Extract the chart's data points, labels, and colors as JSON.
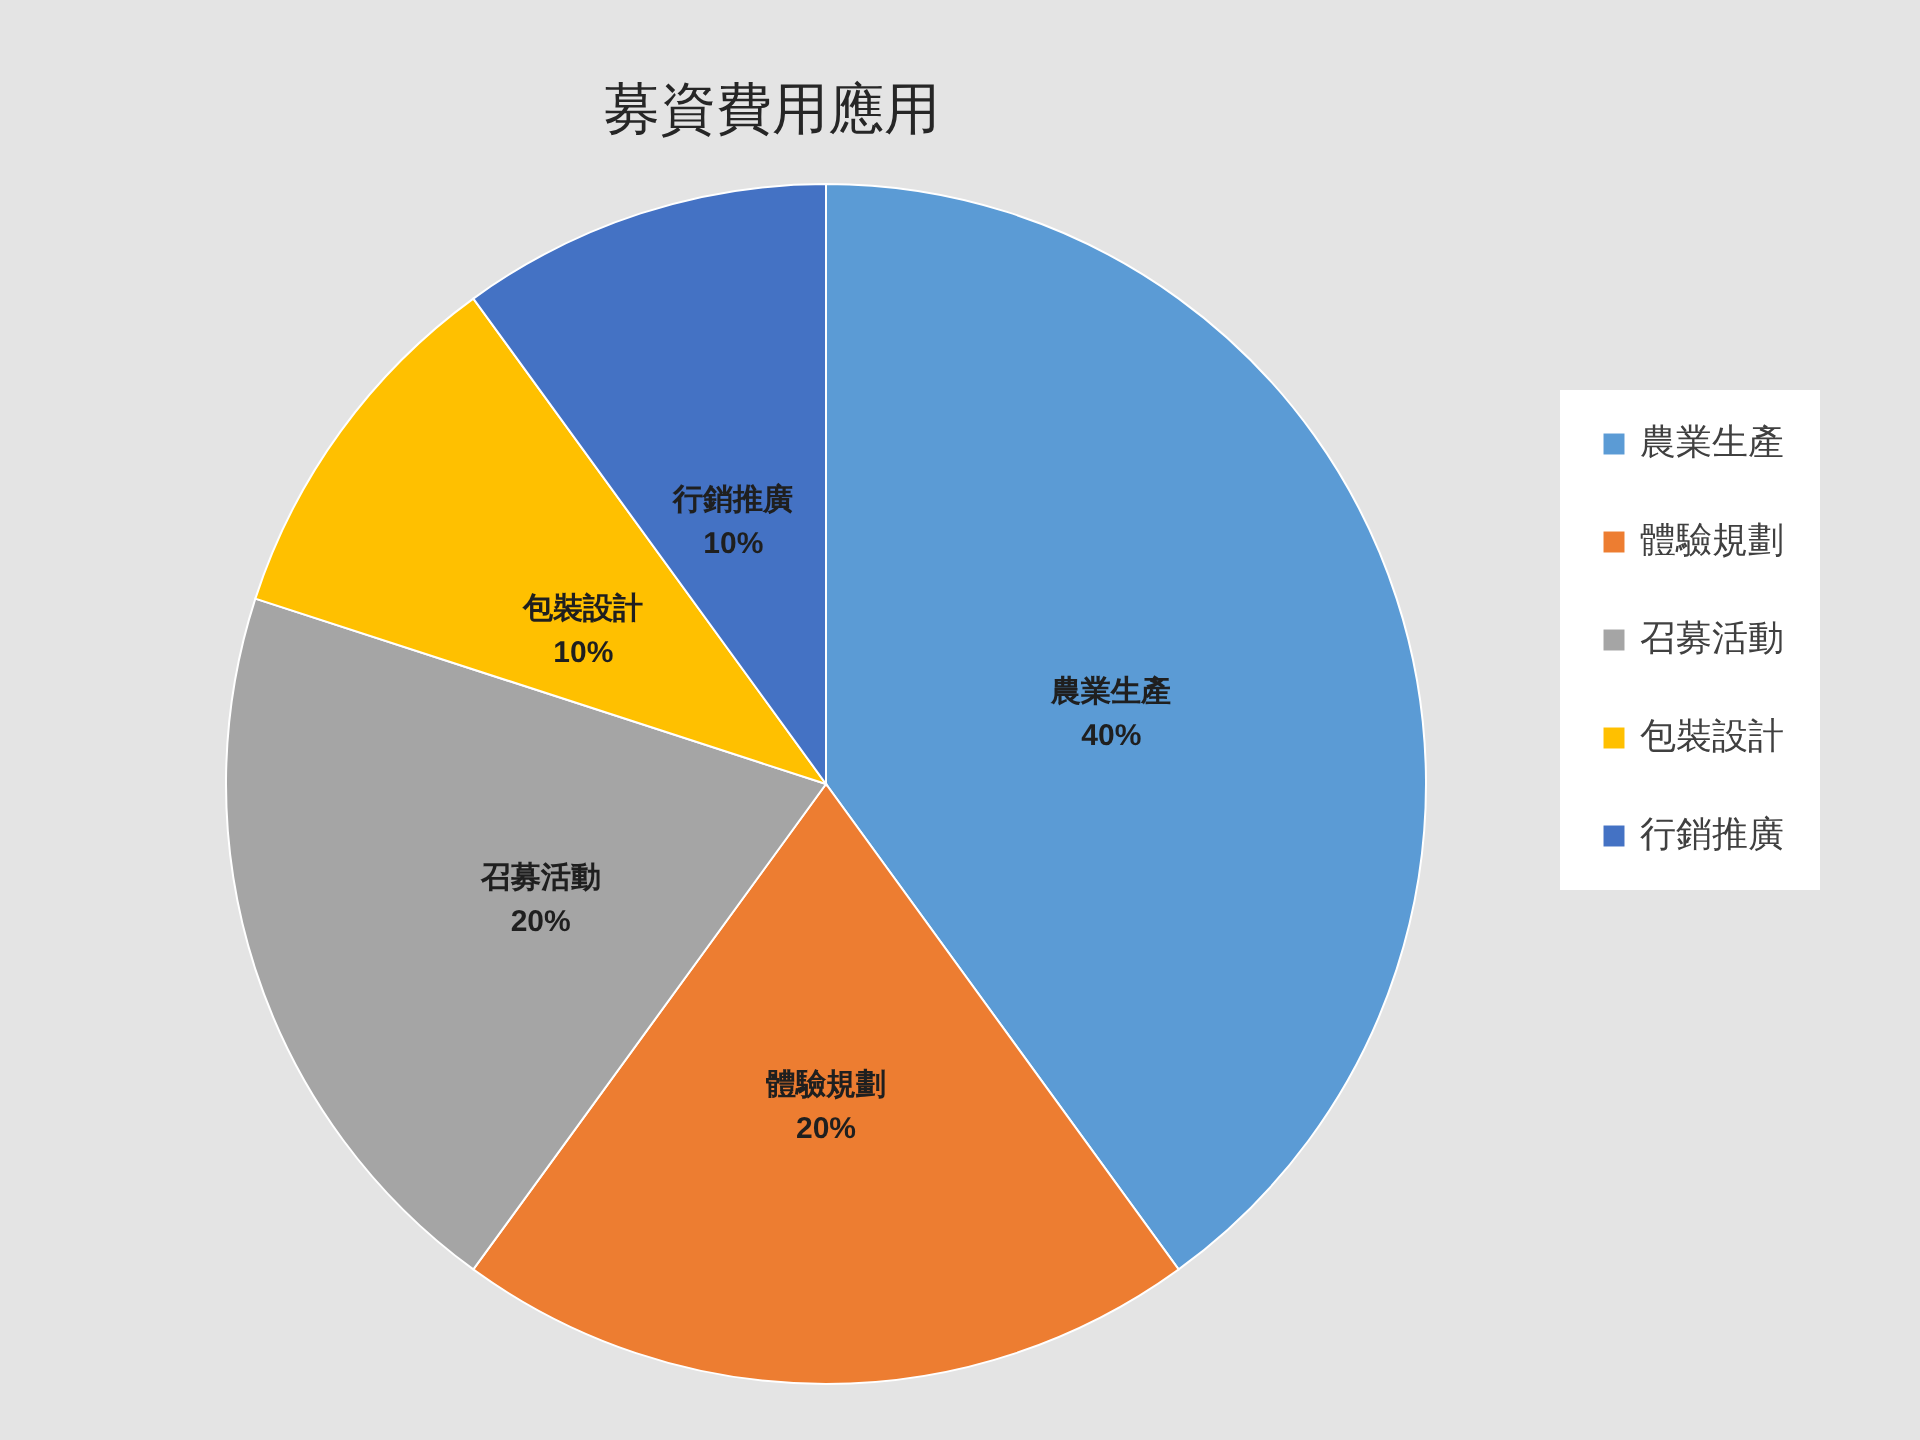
{
  "chart_data": {
    "type": "pie",
    "title": "募資費用應用",
    "categories": [
      "農業生產",
      "體驗規劃",
      "召募活動",
      "包裝設計",
      "行銷推廣"
    ],
    "values": [
      40,
      20,
      20,
      10,
      10
    ],
    "value_labels": [
      "40%",
      "20%",
      "20%",
      "10%",
      "10%"
    ],
    "colors": [
      "#5b9bd5",
      "#ed7d31",
      "#a5a5a5",
      "#ffc000",
      "#4472c4"
    ],
    "legend": "right"
  }
}
